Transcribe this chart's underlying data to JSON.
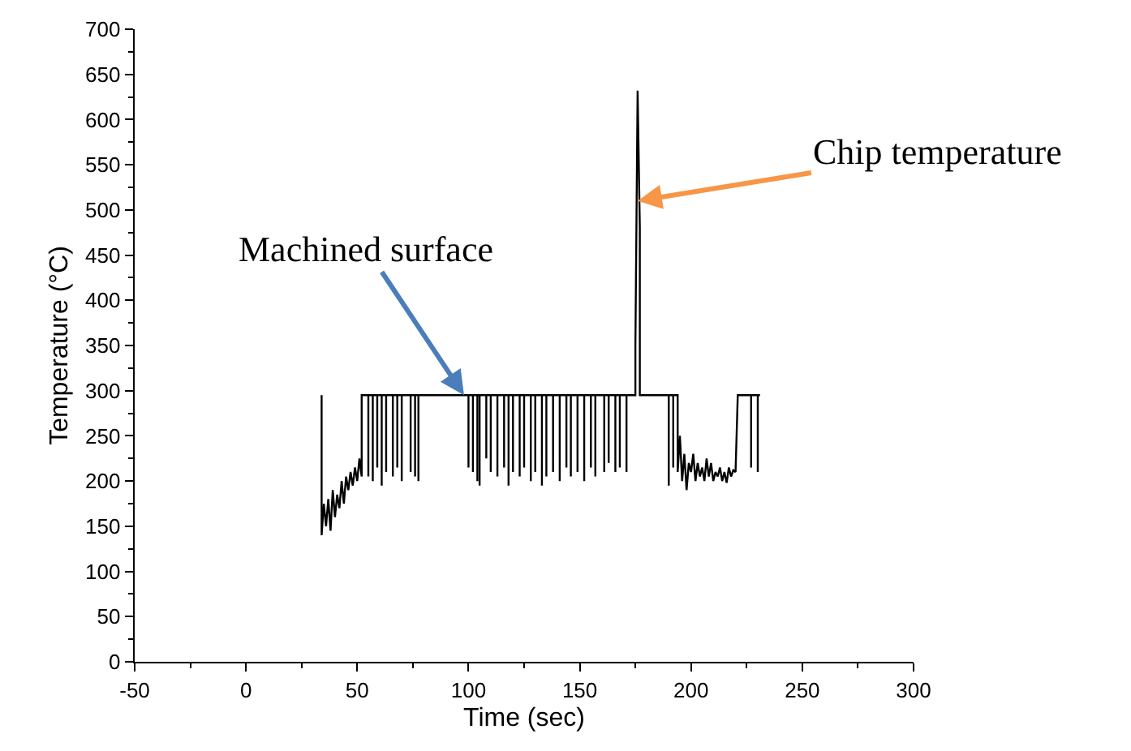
{
  "chart_data": {
    "type": "line",
    "xlabel": "Time (sec)",
    "ylabel": "Temperature (°C)",
    "xlim": [
      -50,
      300
    ],
    "xticks": [
      -50,
      0,
      50,
      100,
      150,
      200,
      250,
      300
    ],
    "ylim": [
      0,
      700
    ],
    "yticks": [
      0,
      50,
      100,
      150,
      200,
      250,
      300,
      350,
      400,
      450,
      500,
      550,
      600,
      650,
      700
    ],
    "marker": "none",
    "line_style": "solid",
    "annotations": [
      {
        "text": "Machined surface",
        "x": 98,
        "y": 295
      },
      {
        "text": "Chip temperature",
        "x": 176,
        "y": 510
      }
    ],
    "series": [
      {
        "color": "#000000",
        "x": [
          34,
          34,
          35,
          36,
          37,
          38,
          39,
          40,
          41,
          42,
          43,
          44,
          45,
          46,
          47,
          48,
          49,
          50,
          51,
          52,
          52,
          55,
          55,
          55,
          57,
          57,
          57,
          59,
          59,
          59,
          61,
          61,
          61,
          63,
          63,
          63,
          66,
          66,
          66,
          68,
          68,
          68,
          70,
          70,
          70,
          74,
          74,
          74,
          76,
          76,
          76,
          77.5,
          77.5,
          77.5,
          100,
          100,
          100,
          102,
          102,
          102,
          104,
          104,
          104,
          105,
          105,
          105,
          108,
          108,
          108,
          110,
          110,
          110,
          113,
          113,
          113,
          116,
          116,
          116,
          118,
          118,
          118,
          120,
          120,
          120,
          123,
          123,
          123,
          125,
          125,
          125,
          128,
          128,
          128,
          130,
          130,
          130,
          133,
          133,
          133,
          135,
          135,
          135,
          138,
          138,
          138,
          141,
          141,
          141,
          144,
          144,
          144,
          146,
          146,
          146,
          149,
          149,
          149,
          152,
          152,
          152,
          155,
          155,
          155,
          157,
          157,
          157,
          161,
          161,
          161,
          163,
          163,
          163,
          166,
          166,
          166,
          168,
          168,
          168,
          171,
          171,
          171,
          175,
          175,
          176,
          177,
          177,
          190,
          190,
          190,
          192,
          192,
          192,
          194,
          194,
          195,
          196,
          197,
          198,
          199,
          200,
          201,
          202,
          203,
          204,
          205,
          206,
          207,
          208,
          209,
          210,
          211,
          212,
          213,
          214,
          215,
          216,
          217,
          218,
          219,
          220,
          221,
          227,
          227,
          227,
          230,
          230,
          230,
          231
        ],
        "values": [
          295,
          140,
          175,
          150,
          180,
          145,
          190,
          160,
          185,
          170,
          200,
          175,
          205,
          190,
          210,
          195,
          215,
          200,
          225,
          205,
          295,
          295,
          205,
          295,
          295,
          200,
          295,
          295,
          215,
          295,
          295,
          195,
          295,
          295,
          210,
          295,
          295,
          205,
          295,
          295,
          215,
          295,
          295,
          200,
          295,
          295,
          210,
          295,
          295,
          205,
          295,
          295,
          200,
          295,
          295,
          215,
          295,
          295,
          210,
          295,
          295,
          200,
          295,
          295,
          195,
          295,
          295,
          225,
          295,
          295,
          210,
          295,
          295,
          205,
          295,
          295,
          215,
          295,
          295,
          195,
          295,
          295,
          210,
          295,
          295,
          205,
          295,
          295,
          215,
          295,
          295,
          200,
          295,
          295,
          210,
          295,
          295,
          195,
          295,
          295,
          205,
          295,
          295,
          210,
          295,
          295,
          200,
          295,
          295,
          215,
          295,
          295,
          205,
          295,
          295,
          210,
          295,
          295,
          200,
          295,
          295,
          215,
          295,
          295,
          205,
          295,
          295,
          210,
          295,
          295,
          220,
          295,
          295,
          210,
          295,
          295,
          215,
          295,
          295,
          210,
          295,
          295,
          350,
          632,
          480,
          295,
          295,
          195,
          295,
          295,
          215,
          295,
          295,
          210,
          250,
          200,
          230,
          190,
          220,
          210,
          230,
          200,
          220,
          205,
          215,
          200,
          225,
          205,
          220,
          200,
          210,
          205,
          215,
          200,
          210,
          198,
          215,
          205,
          212,
          210,
          295,
          295,
          215,
          295,
          295,
          210,
          295,
          295
        ]
      }
    ]
  }
}
